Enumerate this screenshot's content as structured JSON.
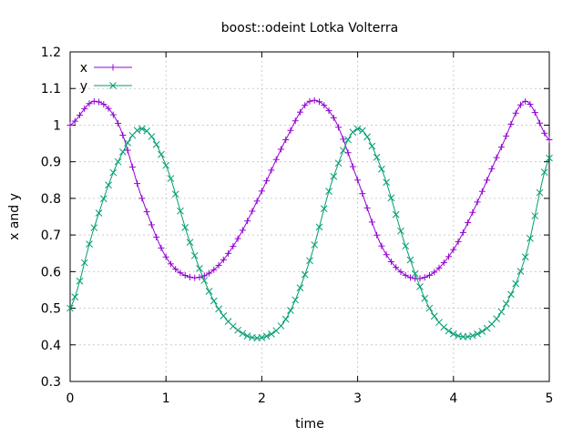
{
  "chart_data": {
    "type": "line",
    "title": "boost::odeint Lotka Volterra",
    "xlabel": "time",
    "ylabel": "x and y",
    "xlim": [
      0,
      5
    ],
    "ylim": [
      0.3,
      1.2
    ],
    "xticks": [
      0,
      1,
      2,
      3,
      4,
      5
    ],
    "xtick_labels": [
      "0",
      "1",
      "2",
      "3",
      "4",
      "5"
    ],
    "yticks": [
      0.3,
      0.4,
      0.5,
      0.6,
      0.7,
      0.8,
      0.9,
      1.0,
      1.1,
      1.2
    ],
    "ytick_labels": [
      "0.3",
      "0.4",
      "0.5",
      "0.6",
      "0.7",
      "0.8",
      "0.9",
      "1",
      "1.1",
      "1.2"
    ],
    "grid": true,
    "legend_position": "top-left",
    "series": [
      {
        "name": "x",
        "color": "#9400d3",
        "marker": "plus",
        "x": [
          0,
          0.25,
          0.5,
          0.75,
          1.0,
          1.25,
          1.5,
          1.75,
          2.0,
          2.25,
          2.5,
          2.75,
          3.0,
          3.25,
          3.5,
          3.75,
          4.0,
          4.25,
          4.5,
          4.75,
          5.0
        ],
        "y": [
          1.0,
          1.065,
          1.005,
          0.8,
          0.64,
          0.585,
          0.605,
          0.69,
          0.82,
          0.96,
          1.065,
          1.02,
          0.85,
          0.67,
          0.59,
          0.59,
          0.66,
          0.79,
          0.94,
          1.065,
          0.96
        ]
      },
      {
        "name": "y",
        "color": "#009e73",
        "marker": "cross",
        "x": [
          0,
          0.25,
          0.5,
          0.75,
          1.0,
          1.25,
          1.5,
          1.75,
          2.0,
          2.25,
          2.5,
          2.75,
          3.0,
          3.25,
          3.5,
          3.75,
          4.0,
          4.25,
          4.5,
          4.75,
          5.0
        ],
        "y": [
          0.5,
          0.72,
          0.9,
          0.99,
          0.89,
          0.68,
          0.52,
          0.44,
          0.42,
          0.47,
          0.63,
          0.86,
          0.99,
          0.88,
          0.67,
          0.5,
          0.43,
          0.43,
          0.49,
          0.64,
          0.91
        ]
      }
    ]
  }
}
